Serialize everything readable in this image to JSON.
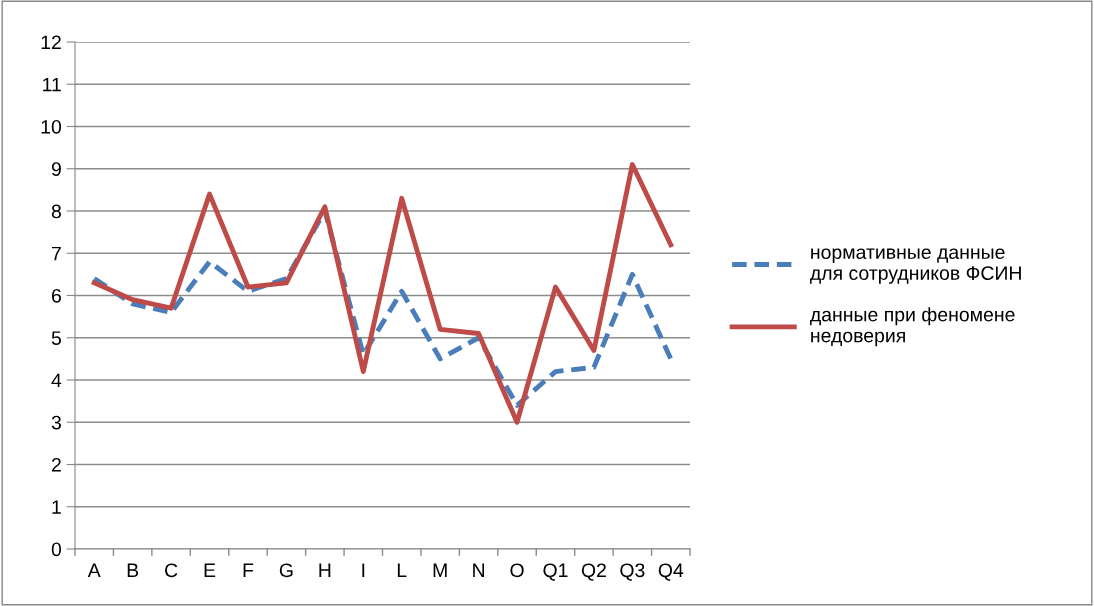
{
  "chart_data": {
    "type": "line",
    "categories": [
      "A",
      "B",
      "C",
      "E",
      "F",
      "G",
      "H",
      "I",
      "L",
      "M",
      "N",
      "O",
      "Q1",
      "Q2",
      "Q3",
      "Q4"
    ],
    "series": [
      {
        "name": "нормативные данные для сотрудников ФСИН",
        "color": "#4a7ebb",
        "line_style": "dashed",
        "values": [
          6.4,
          5.8,
          5.6,
          6.8,
          6.1,
          6.4,
          8.0,
          4.6,
          6.1,
          4.5,
          5.0,
          3.4,
          4.2,
          4.3,
          6.5,
          4.5
        ]
      },
      {
        "name": "данные при феномене недоверия",
        "color": "#be4b48",
        "line_style": "solid",
        "values": [
          6.3,
          5.9,
          5.7,
          8.4,
          6.2,
          6.3,
          8.1,
          4.2,
          8.3,
          5.2,
          5.1,
          3.0,
          6.2,
          4.7,
          9.1,
          7.2
        ]
      }
    ],
    "ylim": [
      0,
      12
    ],
    "yticks": [
      0,
      1,
      2,
      3,
      4,
      5,
      6,
      7,
      8,
      9,
      10,
      11,
      12
    ],
    "grid": "y",
    "legend": "right",
    "marker": "none"
  }
}
